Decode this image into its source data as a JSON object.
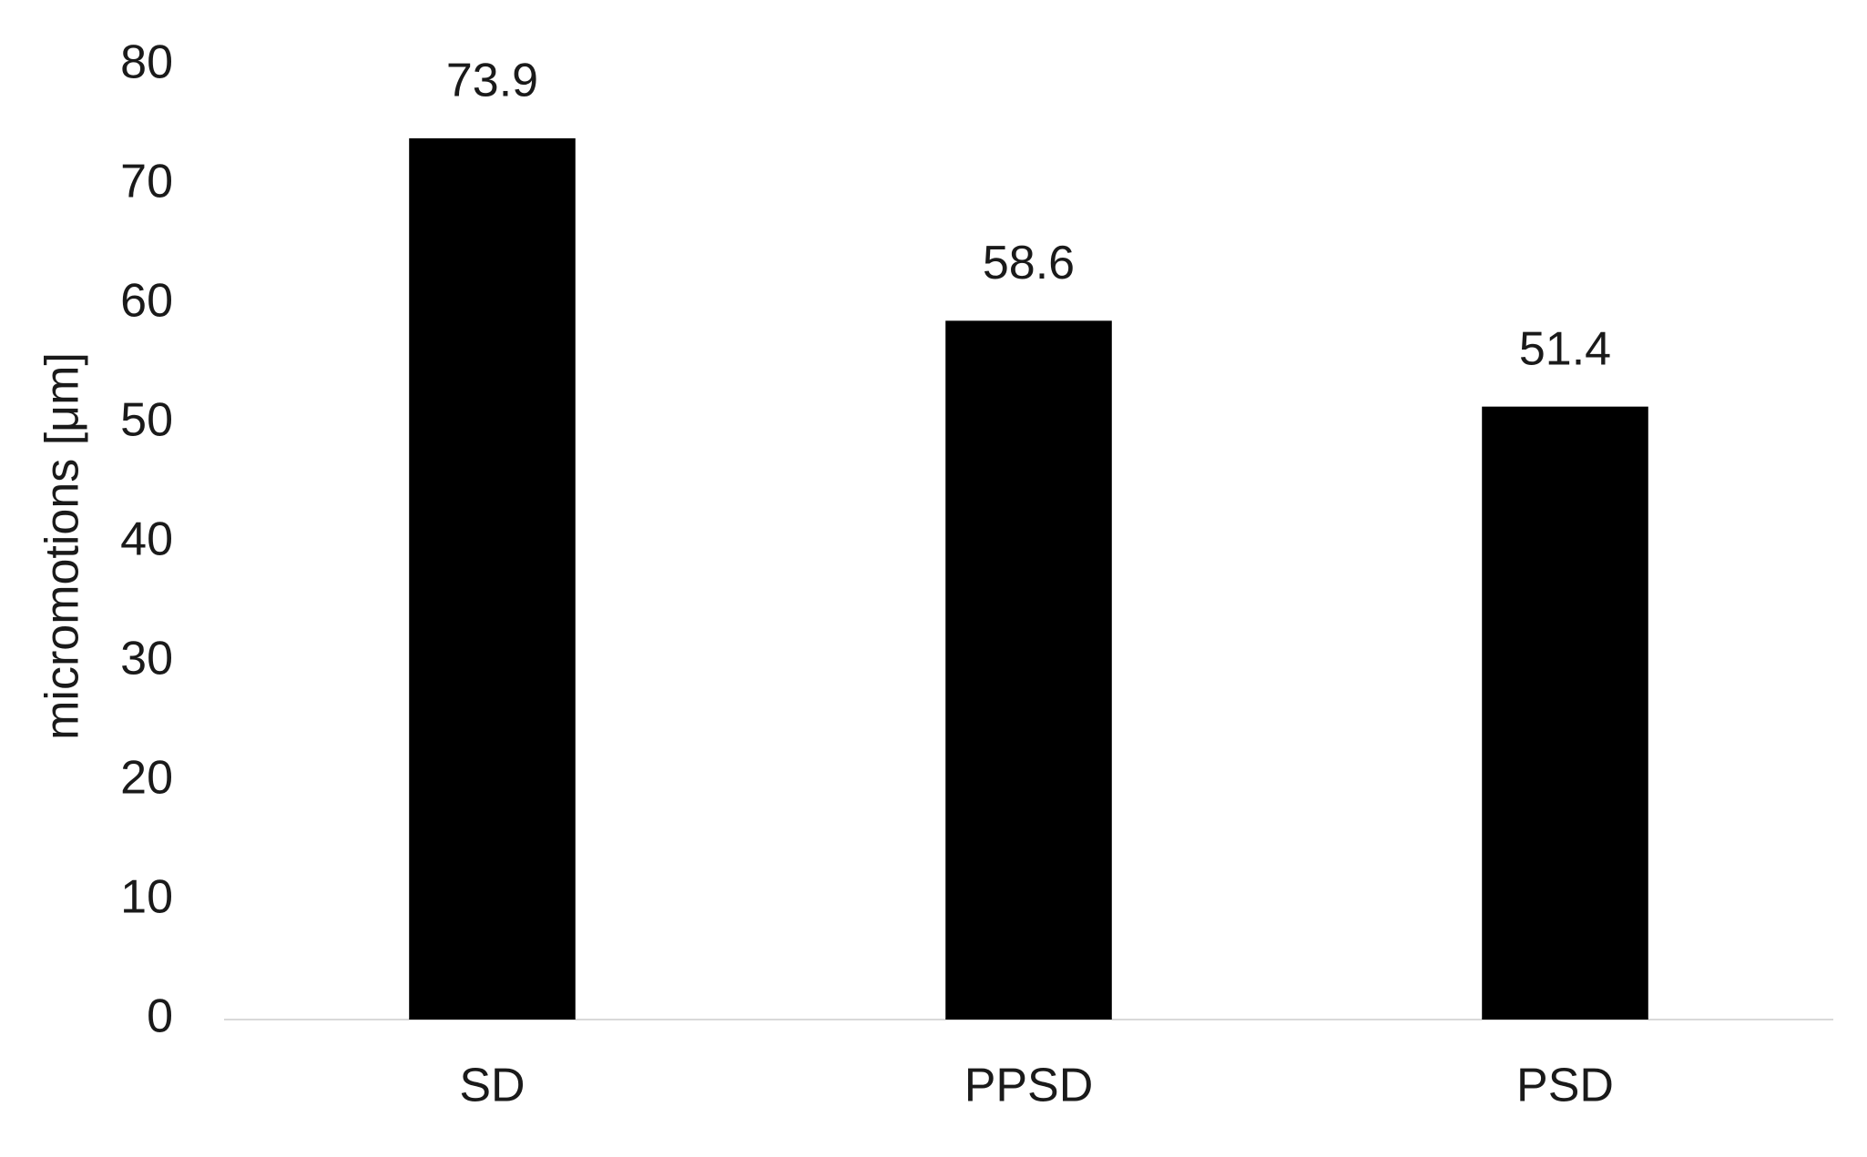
{
  "chart_data": {
    "type": "bar",
    "y_label": "micromotions [μm]",
    "categories": [
      "SD",
      "PPSD",
      "PSD"
    ],
    "values": [
      73.9,
      58.6,
      51.4
    ],
    "color": "#000000",
    "ylim": [
      0,
      80
    ],
    "yticks": [
      0,
      10,
      20,
      30,
      40,
      50,
      60,
      70,
      80
    ],
    "grid": false
  }
}
